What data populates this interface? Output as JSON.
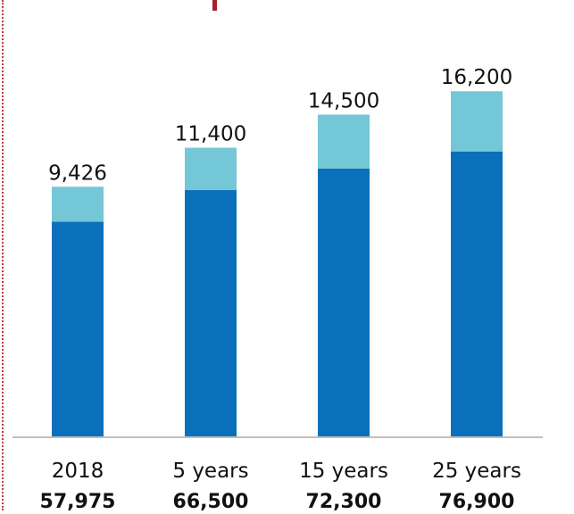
{
  "chart_data": {
    "type": "bar",
    "stacked": true,
    "categories": [
      "2018",
      "5 years",
      "15 years",
      "25 years"
    ],
    "category_totals": [
      "57,975",
      "66,500",
      "72,300",
      "76,900"
    ],
    "series": [
      {
        "values": [
          57975,
          66500,
          72300,
          76900
        ],
        "color": "#0b70bb"
      },
      {
        "values": [
          9426,
          11400,
          14500,
          16200
        ],
        "color": "#74c7d6"
      }
    ],
    "top_labels": [
      "9,426",
      "11,400",
      "14,500",
      "16,200"
    ],
    "ylim": [
      0,
      100000
    ],
    "grid": false,
    "legend": "none",
    "xlabel": "",
    "ylabel": "",
    "title": ""
  },
  "colors": {
    "primary_bar": "#0b70bb",
    "secondary_bar": "#74c7d6",
    "axis": "#bfbfbf",
    "text": "#111111",
    "title_accent": "#a3202a",
    "side_dots": "#c43b3b"
  }
}
